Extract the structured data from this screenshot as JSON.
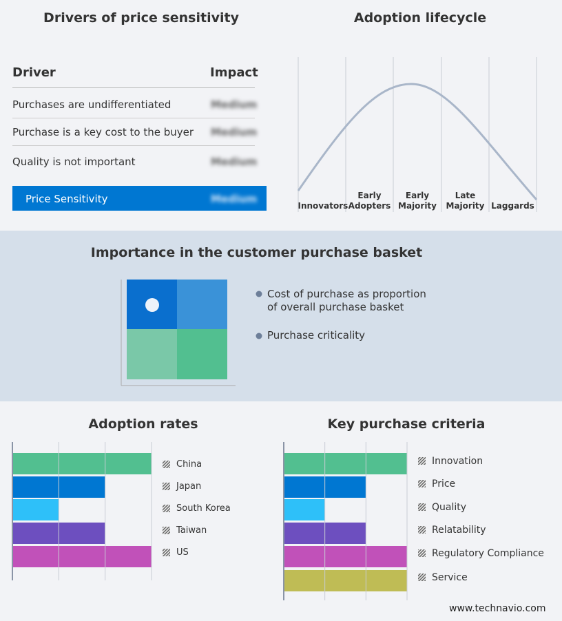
{
  "drivers": {
    "title": "Drivers of price sensitivity",
    "headers": [
      "Driver",
      "Impact"
    ],
    "rows": [
      [
        "Purchases are undifferentiated",
        "Medium"
      ],
      [
        "Purchase is a key cost to the buyer",
        "Medium"
      ],
      [
        "Quality is not important",
        "Medium"
      ]
    ],
    "summary": [
      "Price Sensitivity",
      "Medium"
    ]
  },
  "lifecycle": {
    "title": "Adoption lifecycle",
    "stages": [
      "Innovators",
      "Early Adopters",
      "Early Majority",
      "Late Majority",
      "Laggards"
    ]
  },
  "basket": {
    "title": "Importance in the customer purchase basket",
    "legend": [
      "Cost of purchase as proportion of overall purchase basket",
      "Purchase criticality"
    ]
  },
  "chart_data": [
    {
      "type": "bar",
      "title": "Adoption rates",
      "categories": [
        "China",
        "Japan",
        "South Korea",
        "Taiwan",
        "US"
      ],
      "values": [
        3,
        2,
        1,
        2,
        3
      ],
      "colors": [
        "#52bf90",
        "#0077d2",
        "#2ec0f9",
        "#6d4fbf",
        "#c151b9"
      ],
      "xlim": [
        0,
        3
      ],
      "xticks": [
        0,
        1,
        2,
        3
      ],
      "grid": true
    },
    {
      "type": "bar",
      "title": "Key purchase criteria",
      "categories": [
        "Innovation",
        "Price",
        "Quality",
        "Relatability",
        "Regulatory Compliance",
        "Service"
      ],
      "values": [
        3,
        2,
        1,
        2,
        3,
        3
      ],
      "colors": [
        "#52bf90",
        "#0077d2",
        "#2ec0f9",
        "#6d4fbf",
        "#c151b9",
        "#bfbc55"
      ],
      "xlim": [
        0,
        3
      ],
      "xticks": [
        0,
        1,
        2,
        3
      ],
      "grid": true
    }
  ],
  "footer": "www.technavio.com"
}
